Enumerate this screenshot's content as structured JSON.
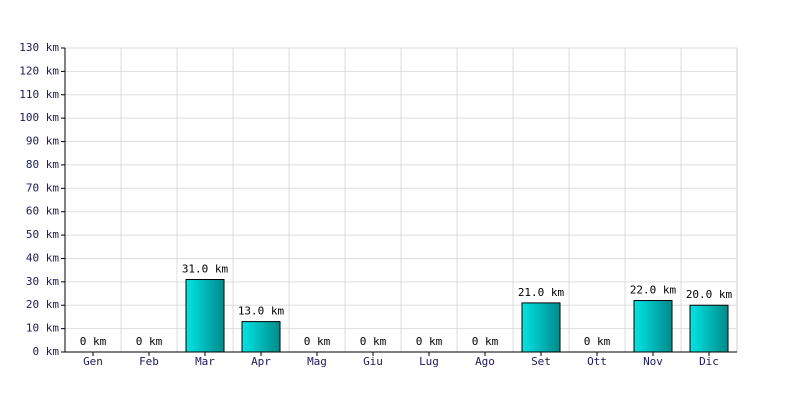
{
  "chart_data": {
    "type": "bar",
    "categories": [
      "Gen",
      "Feb",
      "Mar",
      "Apr",
      "Mag",
      "Giu",
      "Lug",
      "Ago",
      "Set",
      "Ott",
      "Nov",
      "Dic"
    ],
    "values": [
      0,
      0,
      31,
      13,
      0,
      0,
      0,
      0,
      21,
      0,
      22,
      20
    ],
    "value_labels": [
      "0 km",
      "0 km",
      "31.0 km",
      "13.0 km",
      "0 km",
      "0 km",
      "0 km",
      "0 km",
      "21.0 km",
      "0 km",
      "22.0 km",
      "20.0 km"
    ],
    "color": "#00e5e5",
    "ylim": [
      0,
      130
    ],
    "yticks": [
      {
        "value": 0,
        "label": "0 km"
      },
      {
        "value": 10,
        "label": "10 km"
      },
      {
        "value": 20,
        "label": "20 km"
      },
      {
        "value": 30,
        "label": "30 km"
      },
      {
        "value": 40,
        "label": "40 km"
      },
      {
        "value": 50,
        "label": "50 km"
      },
      {
        "value": 60,
        "label": "60 km"
      },
      {
        "value": 70,
        "label": "70 km"
      },
      {
        "value": 80,
        "label": "80 km"
      },
      {
        "value": 90,
        "label": "90 km"
      },
      {
        "value": 100,
        "label": "100 km"
      },
      {
        "value": 110,
        "label": "110 km"
      },
      {
        "value": 120,
        "label": "120 km"
      },
      {
        "value": 130,
        "label": "130 km"
      }
    ],
    "grid": true
  }
}
